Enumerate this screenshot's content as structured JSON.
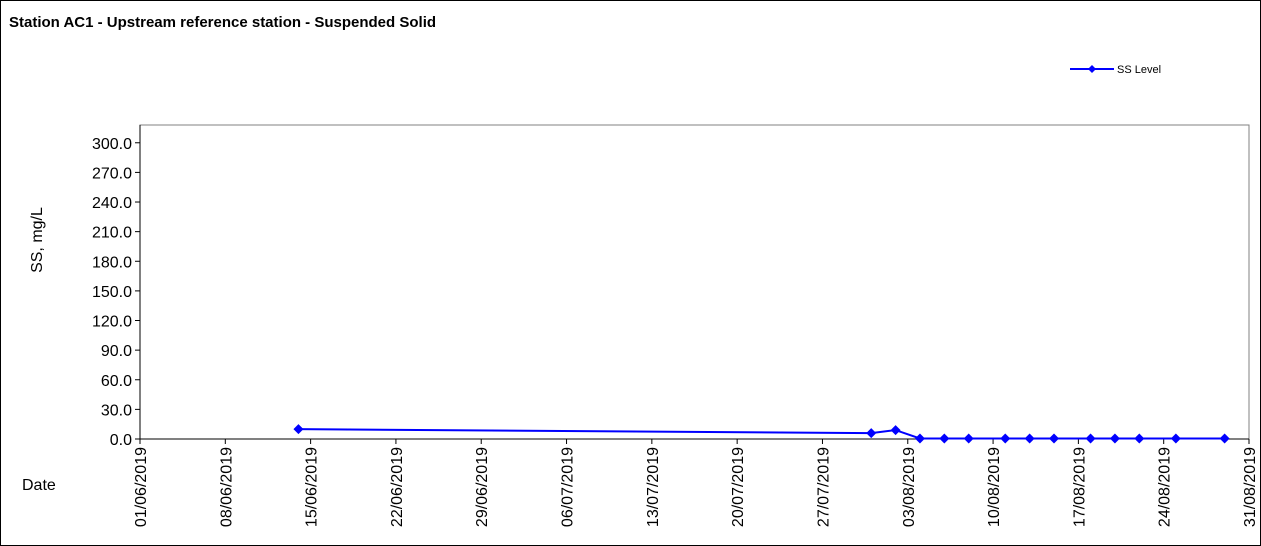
{
  "chart_data": {
    "type": "line",
    "title": "Station AC1 - Upstream reference station - Suspended Solid",
    "x_label": "Date",
    "y_label": "SS, mg/L",
    "series": [
      {
        "name": "SS Level",
        "color": "#0000ff",
        "x": [
          "2019-06-14",
          "2019-07-31",
          "2019-08-02",
          "2019-08-04",
          "2019-08-06",
          "2019-08-08",
          "2019-08-11",
          "2019-08-13",
          "2019-08-15",
          "2019-08-18",
          "2019-08-20",
          "2019-08-22",
          "2019-08-25",
          "2019-08-29"
        ],
        "values": [
          10,
          6,
          9,
          0.5,
          0.5,
          0.5,
          0.5,
          0.5,
          0.5,
          0.5,
          0.5,
          0.5,
          0.5,
          0.5
        ]
      }
    ],
    "xlim": [
      "2019-06-01",
      "2019-08-31"
    ],
    "xticks": [
      {
        "value": "2019-06-01",
        "label": "01/06/2019"
      },
      {
        "value": "2019-06-08",
        "label": "08/06/2019"
      },
      {
        "value": "2019-06-15",
        "label": "15/06/2019"
      },
      {
        "value": "2019-06-22",
        "label": "22/06/2019"
      },
      {
        "value": "2019-06-29",
        "label": "29/06/2019"
      },
      {
        "value": "2019-07-06",
        "label": "06/07/2019"
      },
      {
        "value": "2019-07-13",
        "label": "13/07/2019"
      },
      {
        "value": "2019-07-20",
        "label": "20/07/2019"
      },
      {
        "value": "2019-07-27",
        "label": "27/07/2019"
      },
      {
        "value": "2019-08-03",
        "label": "03/08/2019"
      },
      {
        "value": "2019-08-10",
        "label": "10/08/2019"
      },
      {
        "value": "2019-08-17",
        "label": "17/08/2019"
      },
      {
        "value": "2019-08-24",
        "label": "24/08/2019"
      },
      {
        "value": "2019-08-31",
        "label": "31/08/2019"
      }
    ],
    "ylim": [
      0,
      318
    ],
    "yticks": [
      {
        "value": 0,
        "label": "0.0"
      },
      {
        "value": 30,
        "label": "30.0"
      },
      {
        "value": 60,
        "label": "60.0"
      },
      {
        "value": 90,
        "label": "90.0"
      },
      {
        "value": 120,
        "label": "120.0"
      },
      {
        "value": 150,
        "label": "150.0"
      },
      {
        "value": 180,
        "label": "180.0"
      },
      {
        "value": 210,
        "label": "210.0"
      },
      {
        "value": 240,
        "label": "240.0"
      },
      {
        "value": 270,
        "label": "270.0"
      },
      {
        "value": 300,
        "label": "300.0"
      }
    ],
    "legend": "top-right"
  }
}
